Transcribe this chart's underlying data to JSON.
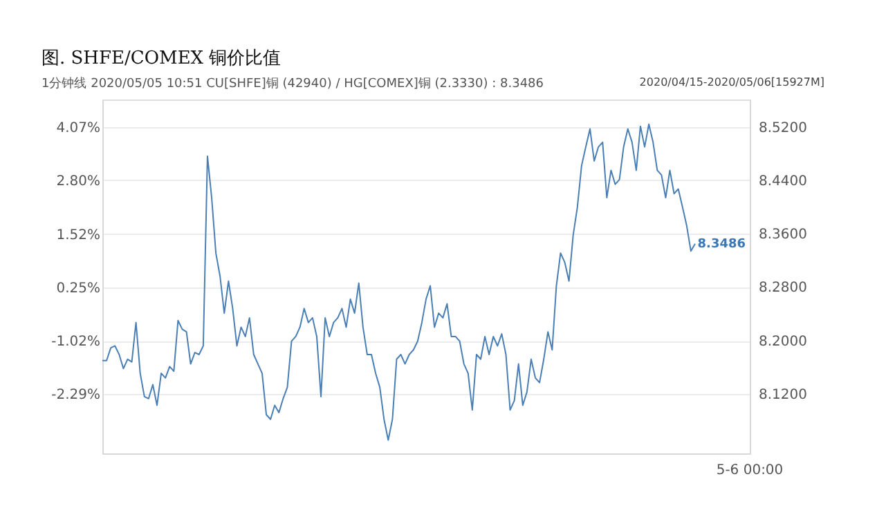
{
  "chart_data": {
    "type": "line",
    "title": "图. SHFE/COMEX 铜价比值",
    "subtitle": "1分钟线 2020/05/05 10:51 CU[SHFE]铜 (42940) / HG[COMEX]铜 (2.3330) : 8.3486",
    "annotations": [
      "2020/04/15-2020/05/06[15927M]",
      "8.3486",
      "5-6 00:00"
    ],
    "categories": [
      null,
      null,
      null,
      null,
      null,
      null,
      null,
      null,
      null,
      null,
      null,
      null,
      null,
      null,
      null,
      null,
      null,
      null,
      null,
      null,
      null,
      null,
      null,
      null,
      null,
      null,
      null,
      null,
      null,
      null,
      null,
      null,
      null,
      null,
      null,
      null,
      null,
      null,
      null,
      null,
      null,
      null,
      null,
      null,
      null,
      null,
      null,
      null,
      null,
      null,
      null,
      null,
      null,
      null,
      null,
      null,
      null,
      null,
      null,
      null,
      null,
      null,
      null,
      null,
      null,
      null,
      null,
      null,
      null,
      null,
      null,
      null,
      null,
      null,
      null,
      null,
      null,
      null,
      null,
      null,
      null,
      null,
      null,
      null,
      null,
      null,
      null,
      null,
      null,
      null,
      null,
      null,
      null,
      null,
      null,
      null,
      null,
      null,
      null,
      null,
      null,
      null,
      null,
      null,
      null,
      null,
      null,
      null,
      null,
      null,
      null,
      null,
      null,
      null,
      null,
      null,
      null,
      null,
      null,
      null,
      null,
      null,
      null,
      null,
      null,
      null,
      null,
      null,
      null,
      null,
      null,
      null,
      null,
      null,
      null,
      null,
      null,
      null,
      null,
      null,
      null,
      null,
      null,
      null,
      null,
      null,
      null,
      null,
      null,
      null,
      null,
      null,
      null,
      null,
      null
    ],
    "series": [
      {
        "axis": "y2",
        "color": "#4a7fb5",
        "values": [
          8.17,
          8.17,
          8.189,
          8.192,
          8.179,
          8.158,
          8.172,
          8.168,
          8.227,
          8.151,
          8.116,
          8.113,
          8.134,
          8.103,
          8.151,
          8.144,
          8.161,
          8.154,
          8.23,
          8.217,
          8.213,
          8.165,
          8.182,
          8.179,
          8.192,
          8.476,
          8.414,
          8.331,
          8.296,
          8.241,
          8.289,
          8.248,
          8.192,
          8.22,
          8.206,
          8.234,
          8.179,
          8.165,
          8.151,
          8.089,
          8.082,
          8.103,
          8.092,
          8.113,
          8.13,
          8.199,
          8.206,
          8.22,
          8.248,
          8.227,
          8.234,
          8.206,
          8.116,
          8.234,
          8.206,
          8.227,
          8.234,
          8.248,
          8.22,
          8.262,
          8.241,
          8.286,
          8.22,
          8.179,
          8.179,
          8.151,
          8.13,
          8.082,
          8.051,
          8.082,
          8.172,
          8.179,
          8.165,
          8.179,
          8.186,
          8.199,
          8.227,
          8.262,
          8.282,
          8.22,
          8.241,
          8.234,
          8.255,
          8.206,
          8.206,
          8.199,
          8.165,
          8.151,
          8.096,
          8.179,
          8.172,
          8.206,
          8.179,
          8.206,
          8.192,
          8.21,
          8.179,
          8.096,
          8.11,
          8.165,
          8.103,
          8.123,
          8.172,
          8.144,
          8.137,
          8.172,
          8.213,
          8.186,
          8.282,
          8.331,
          8.317,
          8.289,
          8.358,
          8.4,
          8.462,
          8.49,
          8.517,
          8.469,
          8.49,
          8.497,
          8.414,
          8.455,
          8.434,
          8.441,
          8.49,
          8.517,
          8.497,
          8.455,
          8.521,
          8.49,
          8.524,
          8.497,
          8.455,
          8.448,
          8.414,
          8.455,
          8.42,
          8.427,
          8.4,
          8.372,
          8.334,
          8.345,
          null,
          null,
          null,
          null,
          null,
          null,
          null,
          null,
          null,
          null,
          null,
          null,
          null
        ]
      }
    ],
    "ylim": [
      -3.7,
      4.72
    ],
    "yticks": [
      {
        "value": -2.29,
        "label": "-2.29%"
      },
      {
        "value": -1.02,
        "label": "-1.02%"
      },
      {
        "value": 0.25,
        "label": "0.25%"
      },
      {
        "value": 1.52,
        "label": "1.52%"
      },
      {
        "value": 2.8,
        "label": "2.80%"
      },
      {
        "value": 4.07,
        "label": "4.07%"
      }
    ],
    "y2lim": [
      8.031,
      8.561
    ],
    "y2ticks": [
      {
        "value": 8.12,
        "label": "8.1200"
      },
      {
        "value": 8.2,
        "label": "8.2000"
      },
      {
        "value": 8.28,
        "label": "8.2800"
      },
      {
        "value": 8.36,
        "label": "8.3600"
      },
      {
        "value": 8.44,
        "label": "8.4400"
      },
      {
        "value": 8.52,
        "label": "8.5200"
      }
    ],
    "grid": "y",
    "marker": "none",
    "line_style": "solid"
  }
}
